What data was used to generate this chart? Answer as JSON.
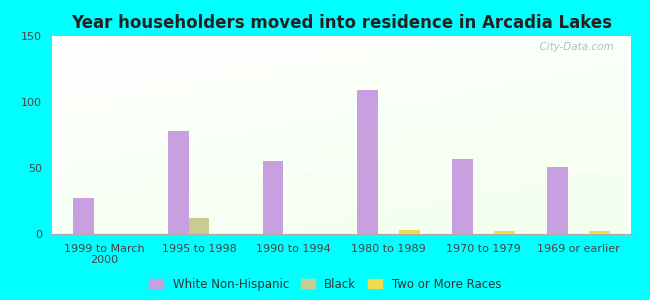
{
  "title": "Year householders moved into residence in Arcadia Lakes",
  "categories": [
    "1999 to March\n2000",
    "1995 to 1998",
    "1990 to 1994",
    "1980 to 1989",
    "1970 to 1979",
    "1969 or earlier"
  ],
  "white_non_hispanic": [
    27,
    78,
    55,
    109,
    57,
    51
  ],
  "black": [
    0,
    12,
    0,
    0,
    0,
    0
  ],
  "two_or_more_races": [
    0,
    0,
    0,
    3,
    2,
    2
  ],
  "white_color": "#c8a0e0",
  "black_color": "#c8cc90",
  "two_color": "#eedc50",
  "ylim": [
    0,
    150
  ],
  "yticks": [
    0,
    50,
    100,
    150
  ],
  "background_color": "#00ffff",
  "bar_width": 0.22,
  "legend_labels": [
    "White Non-Hispanic",
    "Black",
    "Two or More Races"
  ],
  "title_fontsize": 12,
  "tick_fontsize": 8
}
